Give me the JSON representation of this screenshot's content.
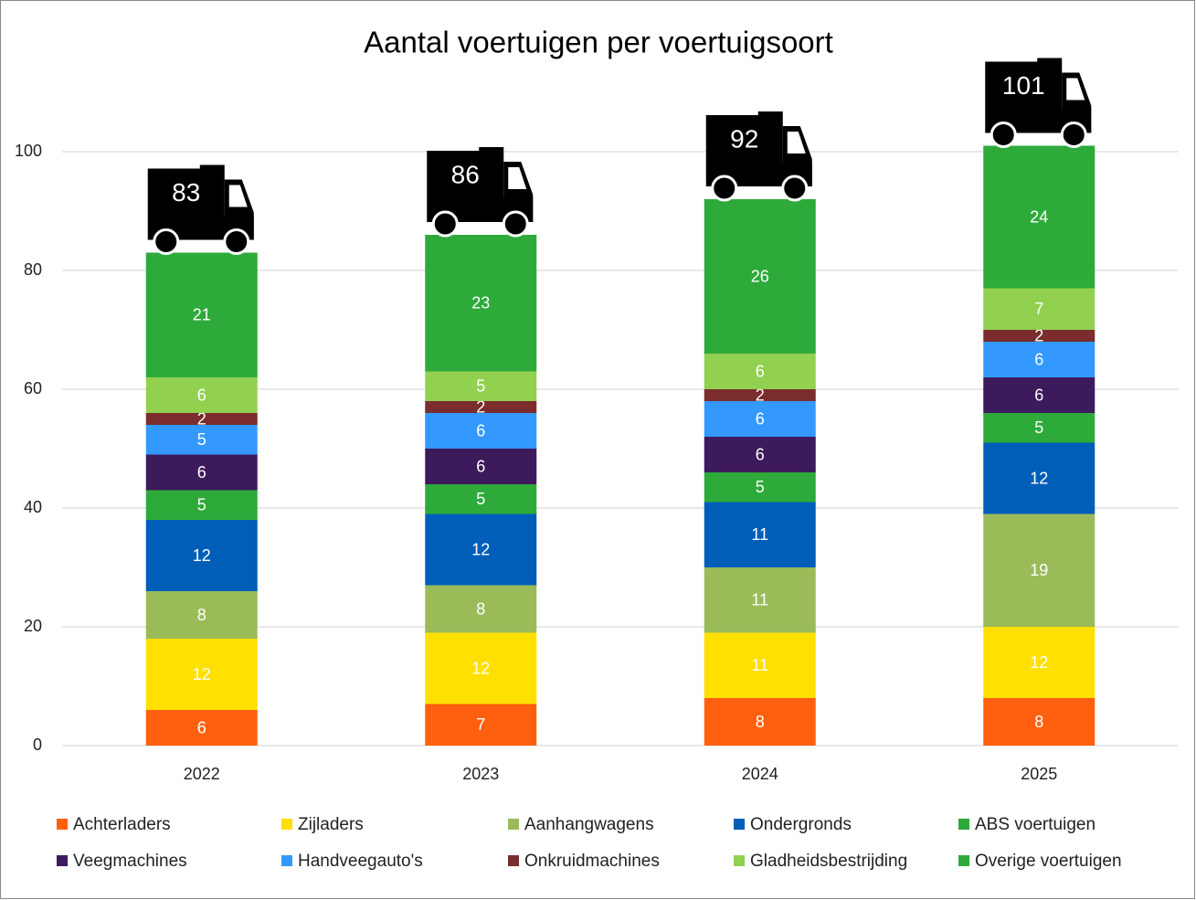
{
  "chart_data": {
    "type": "stacked_bar",
    "title": "Aantal voertuigen per voertuigsoort",
    "categories": [
      "2022",
      "2023",
      "2024",
      "2025"
    ],
    "series": [
      {
        "name": "Achterladers",
        "color": "#ff6010",
        "values": [
          6,
          7,
          8,
          8
        ]
      },
      {
        "name": "Zijladers",
        "color": "#ffe000",
        "values": [
          12,
          12,
          11,
          12
        ]
      },
      {
        "name": "Aanhangwagens",
        "color": "#9bbb59",
        "values": [
          8,
          8,
          11,
          19
        ]
      },
      {
        "name": "Ondergronds",
        "color": "#005eb8",
        "values": [
          12,
          12,
          11,
          12
        ]
      },
      {
        "name": "ABS voertuigen",
        "color": "#2eaa3a",
        "values": [
          5,
          5,
          5,
          5
        ]
      },
      {
        "name": "Veegmachines",
        "color": "#3d1a5c",
        "values": [
          6,
          6,
          6,
          6
        ]
      },
      {
        "name": "Handveegauto's",
        "color": "#3399ff",
        "values": [
          5,
          6,
          6,
          6
        ]
      },
      {
        "name": "Onkruidmachines",
        "color": "#7b2c2c",
        "values": [
          2,
          2,
          2,
          2
        ]
      },
      {
        "name": "Gladheidsbestrijding",
        "color": "#92d050",
        "values": [
          6,
          5,
          6,
          7
        ]
      },
      {
        "name": "Overige voertuigen",
        "color": "#2eaa3a",
        "values": [
          21,
          23,
          26,
          24
        ]
      }
    ],
    "totals": [
      83,
      86,
      92,
      101
    ],
    "ylim": [
      0,
      120
    ],
    "yticks": [
      0,
      20,
      40,
      60,
      80,
      100
    ],
    "grid": true,
    "legend": "bottom"
  }
}
